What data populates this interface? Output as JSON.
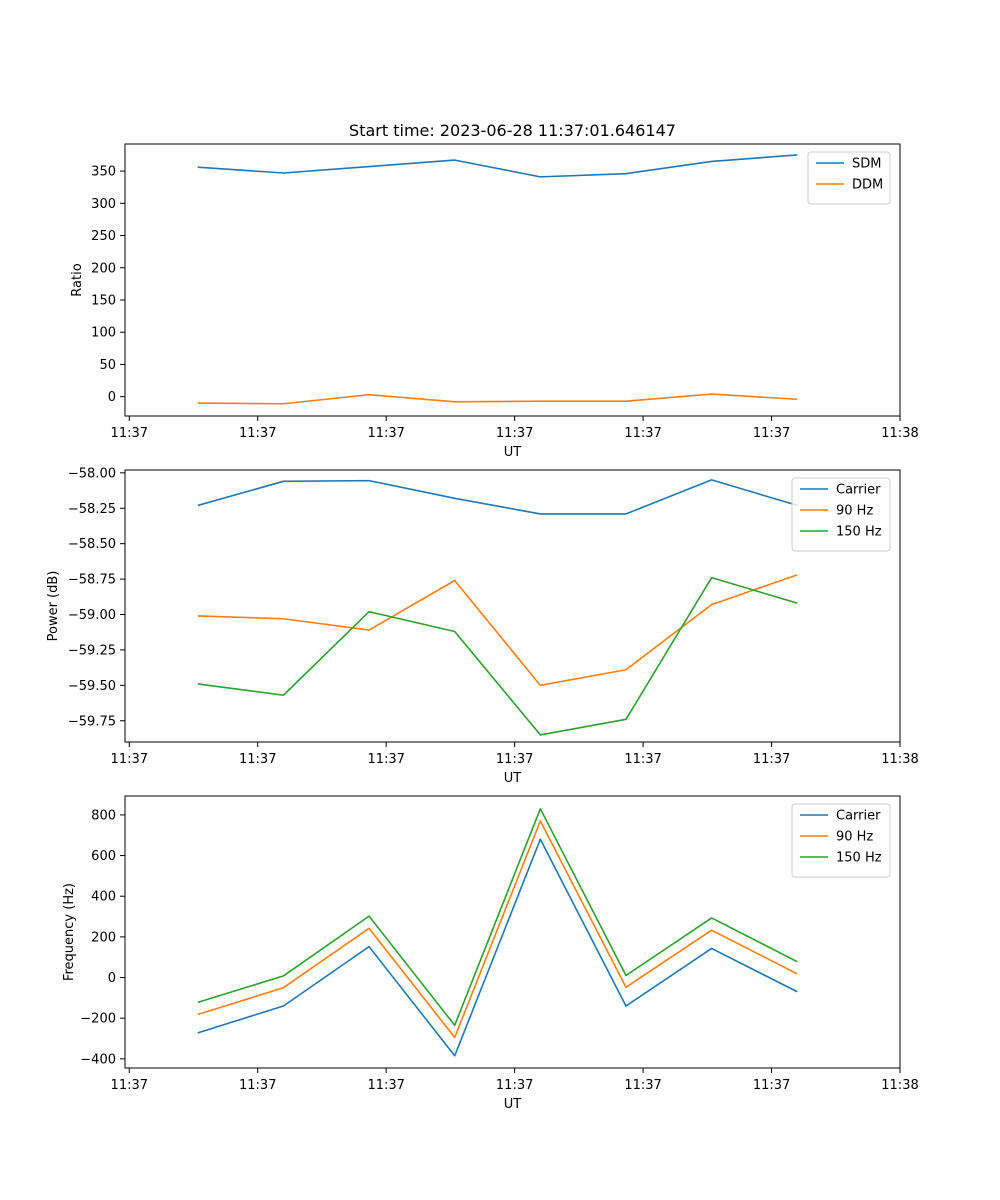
{
  "figure": {
    "title": "Start time: 2023-06-28 11:37:01.646147"
  },
  "colors": {
    "blue": "#1f77b4",
    "orange": "#ff7f0e",
    "green": "#2ca02c"
  },
  "chart_data": [
    {
      "type": "line",
      "title": "Start time: 2023-06-28 11:37:01.646147",
      "xlabel": "UT",
      "ylabel": "Ratio",
      "x": [
        1,
        2,
        3,
        4,
        5,
        6,
        7,
        8
      ],
      "xlim": [
        0.15,
        9.2
      ],
      "x_ticks": [
        0.2,
        1.7,
        3.2,
        4.7,
        6.2,
        7.7,
        9.2
      ],
      "x_tick_labels": [
        "11:37",
        "11:37",
        "11:37",
        "11:37",
        "11:37",
        "11:37",
        "11:38"
      ],
      "ylim": [
        -30,
        392
      ],
      "y_ticks": [
        0,
        50,
        100,
        150,
        200,
        250,
        300,
        350
      ],
      "y_tick_labels": [
        "0",
        "50",
        "100",
        "150",
        "200",
        "250",
        "300",
        "350"
      ],
      "grid": false,
      "legend_position": "top-right",
      "series": [
        {
          "name": "SDM",
          "color": "#1f77b4",
          "values": [
            356,
            347,
            357,
            367,
            341,
            346,
            365,
            375
          ]
        },
        {
          "name": "DDM",
          "color": "#ff7f0e",
          "values": [
            -10,
            -11,
            3,
            -8,
            -7,
            -7,
            4,
            -4
          ]
        }
      ]
    },
    {
      "type": "line",
      "title": "",
      "xlabel": "UT",
      "ylabel": "Power (dB)",
      "x": [
        1,
        2,
        3,
        4,
        5,
        6,
        7,
        8
      ],
      "xlim": [
        0.15,
        9.2
      ],
      "x_ticks": [
        0.2,
        1.7,
        3.2,
        4.7,
        6.2,
        7.7,
        9.2
      ],
      "x_tick_labels": [
        "11:37",
        "11:37",
        "11:37",
        "11:37",
        "11:37",
        "11:37",
        "11:38"
      ],
      "ylim": [
        -59.9,
        -57.98
      ],
      "y_ticks": [
        -59.75,
        -59.5,
        -59.25,
        -59.0,
        -58.75,
        -58.5,
        -58.25,
        -58.0
      ],
      "y_tick_labels": [
        "−59.75",
        "−59.50",
        "−59.25",
        "−59.00",
        "−58.75",
        "−58.50",
        "−58.25",
        "−58.00"
      ],
      "grid": false,
      "legend_position": "top-right",
      "series": [
        {
          "name": "Carrier",
          "color": "#1f77b4",
          "values": [
            -58.23,
            -58.06,
            -58.055,
            -58.18,
            -58.29,
            -58.29,
            -58.05,
            -58.23
          ]
        },
        {
          "name": "90 Hz",
          "color": "#ff7f0e",
          "values": [
            -59.01,
            -59.03,
            -59.11,
            -58.76,
            -59.5,
            -59.39,
            -58.93,
            -58.72
          ]
        },
        {
          "name": "150 Hz",
          "color": "#2ca02c",
          "values": [
            -59.49,
            -59.57,
            -58.98,
            -59.12,
            -59.85,
            -59.74,
            -58.74,
            -58.92
          ]
        }
      ]
    },
    {
      "type": "line",
      "title": "",
      "xlabel": "UT",
      "ylabel": "Frequency (Hz)",
      "x": [
        1,
        2,
        3,
        4,
        5,
        6,
        7,
        8
      ],
      "xlim": [
        0.15,
        9.2
      ],
      "x_ticks": [
        0.2,
        1.7,
        3.2,
        4.7,
        6.2,
        7.7,
        9.2
      ],
      "x_tick_labels": [
        "11:37",
        "11:37",
        "11:37",
        "11:37",
        "11:37",
        "11:37",
        "11:38"
      ],
      "ylim": [
        -445,
        893
      ],
      "y_ticks": [
        -400,
        -200,
        0,
        200,
        400,
        600,
        800
      ],
      "y_tick_labels": [
        "−400",
        "−200",
        "0",
        "200",
        "400",
        "600",
        "800"
      ],
      "grid": false,
      "legend_position": "top-right",
      "series": [
        {
          "name": "Carrier",
          "color": "#1f77b4",
          "values": [
            -272,
            -140,
            152,
            -385,
            680,
            -140,
            143,
            -70
          ]
        },
        {
          "name": "90 Hz",
          "color": "#ff7f0e",
          "values": [
            -182,
            -50,
            242,
            -295,
            770,
            -48,
            233,
            18
          ]
        },
        {
          "name": "150 Hz",
          "color": "#2ca02c",
          "values": [
            -122,
            8,
            302,
            -235,
            830,
            10,
            293,
            78
          ]
        }
      ]
    }
  ]
}
